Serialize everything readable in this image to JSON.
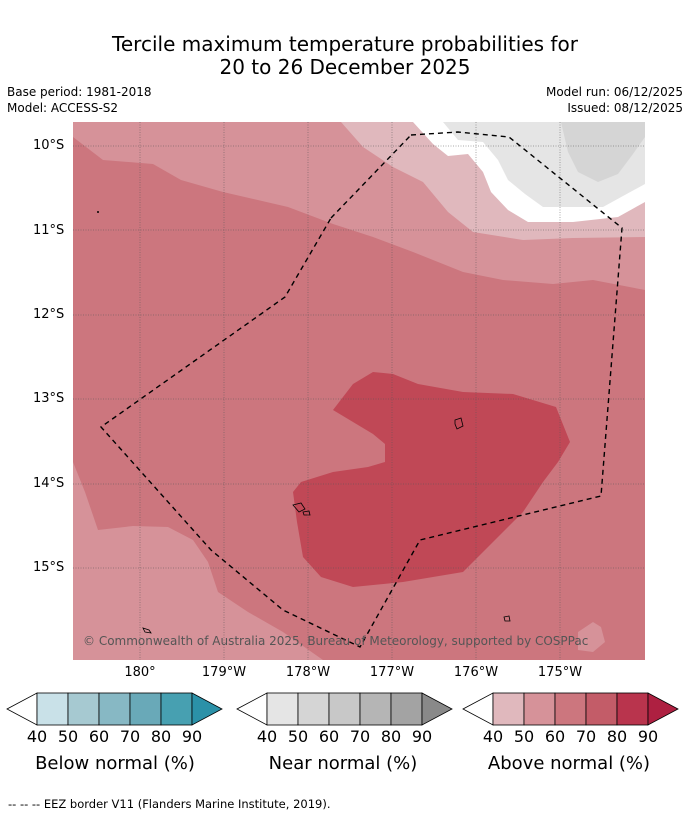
{
  "title": {
    "line1": "Tercile maximum temperature probabilities for",
    "line2": "20 to 26 December 2025"
  },
  "meta": {
    "base_period": "Base period: 1981-2018",
    "model": "Model: ACCESS-S2",
    "model_run": "Model run: 06/12/2025",
    "issued": "Issued: 08/12/2025"
  },
  "map": {
    "lat_labels": [
      "10°S",
      "11°S",
      "12°S",
      "13°S",
      "14°S",
      "15°S"
    ],
    "lon_labels": [
      "180°",
      "179°W",
      "178°W",
      "177°W",
      "176°W",
      "175°W"
    ],
    "copyright": "© Commonwealth of Australia 2025, Bureau of Meteorology, supported by COSPPac"
  },
  "colorbars": [
    {
      "name": "below-normal",
      "title": "Below normal (%)",
      "ticks": [
        "40",
        "50",
        "60",
        "70",
        "80",
        "90"
      ],
      "colors": [
        "#c9e1e8",
        "#a6c9d1",
        "#87b8c4",
        "#69a9b8",
        "#47a0b1",
        "#2b91a8"
      ]
    },
    {
      "name": "near-normal",
      "title": "Near normal (%)",
      "ticks": [
        "40",
        "50",
        "60",
        "70",
        "80",
        "90"
      ],
      "colors": [
        "#e5e5e5",
        "#d5d5d5",
        "#c8c8c8",
        "#b5b5b5",
        "#a3a3a3",
        "#898989"
      ]
    },
    {
      "name": "above-normal",
      "title": "Above normal (%)",
      "ticks": [
        "40",
        "50",
        "60",
        "70",
        "80",
        "90"
      ],
      "colors": [
        "#e0b8bd",
        "#d69299",
        "#cc767e",
        "#c35c68",
        "#b9344d",
        "#ae2041"
      ]
    }
  ],
  "legend": {
    "eez": "--  --  -- EEZ border V11 (Flanders Marine Institute, 2019)."
  }
}
